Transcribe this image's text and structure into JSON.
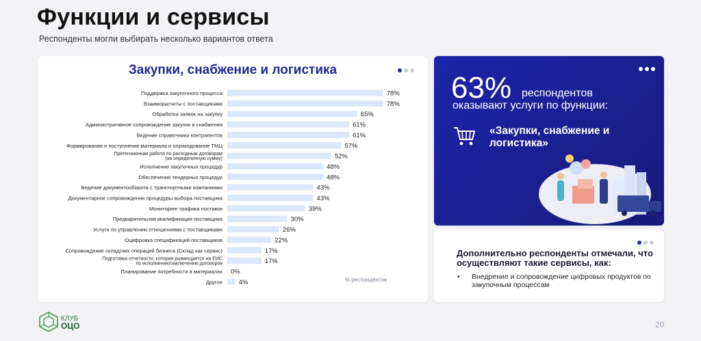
{
  "header": {
    "title": "Функции и сервисы",
    "subtitle": "Респонденты могли выбирать несколько вариантов ответа"
  },
  "chart_data": {
    "type": "bar",
    "orientation": "horizontal",
    "title": "Закупки, снабжение и логистика",
    "axis_note": "% респондентов",
    "xlim": [
      0,
      100
    ],
    "grid": false,
    "bar_color": "#dbe7fb",
    "categories": [
      [
        "Поддержка закупочного процесса"
      ],
      [
        "Взаиморасчеты с поставщиками"
      ],
      [
        "Обработка заявок на закупку"
      ],
      [
        "Административное сопровождение закупок и снабжения"
      ],
      [
        "Ведение справочника контрагентов"
      ],
      [
        "Формирование и поступление материала и оприходование ТМЦ"
      ],
      [
        "Претензионная работа по расходным договорам",
        "(на определенную сумму)"
      ],
      [
        "Исполнение закупочных процедур"
      ],
      [
        "Обеспечение тендерных процедур"
      ],
      [
        "Ведение документооборота с транспортными компаниями"
      ],
      [
        "Документарное сопровождение процедуры выбора поставщика"
      ],
      [
        "Мониторинг графика поставок"
      ],
      [
        "Предварительная квалификация поставщика"
      ],
      [
        "Услуги по управлению отношениями с поставщиками"
      ],
      [
        "Оцифровка спецификаций поставщиков"
      ],
      [
        "Сопровождение складских операций бизнеса (Склад как сервис)"
      ],
      [
        "Подготовка отчетности, которая размещается на ЕИС",
        "по исполнению/заключению договоров"
      ],
      [
        "Планирование потребности в материалах"
      ],
      [
        "Другое"
      ]
    ],
    "values": [
      78,
      78,
      65,
      61,
      61,
      57,
      52,
      48,
      48,
      43,
      43,
      39,
      30,
      26,
      22,
      17,
      17,
      0,
      4
    ]
  },
  "highlight": {
    "percent": "63%",
    "line1": "респондентов",
    "line2": "оказывают услуги по функции:",
    "function_name": "«Закупки, снабжение и логистика»",
    "cart_icon": "shopping-cart-icon"
  },
  "extra": {
    "title": "Дополнительно респонденты отмечали, что осуществляют такие сервисы, как:",
    "items": [
      "Внедрение и сопровождение цифровых продуктов по закупочным процессам"
    ]
  },
  "footer": {
    "logo_line1": "КЛУБ",
    "logo_line2": "ОЦО",
    "page_number": "20"
  },
  "colors": {
    "accent_blue": "#1f2a8f",
    "card_blue": "#1d23a8",
    "bar": "#dbe7fb",
    "logo_green": "#2b7a3b"
  }
}
